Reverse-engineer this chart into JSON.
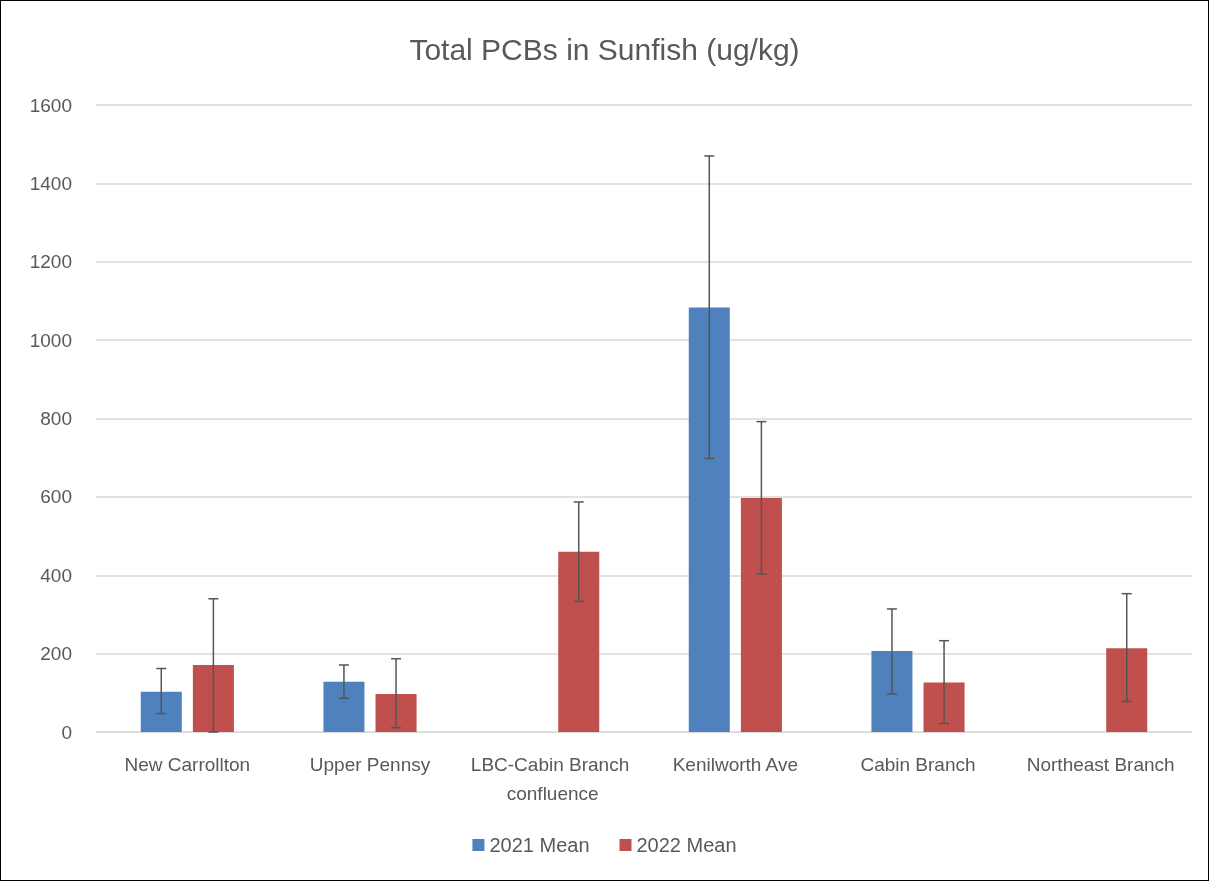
{
  "chart_data": {
    "type": "bar",
    "title": "Total PCBs in Sunfish (ug/kg)",
    "categories": [
      "New Carrollton",
      "Upper Pennsy",
      "LBC-Cabin Branch confluence",
      "Kenilworth Ave",
      "Cabin Branch",
      "Northeast Branch"
    ],
    "series": [
      {
        "name": "2021 Mean",
        "color": "#4f81bd",
        "values": [
          103,
          128,
          null,
          1083,
          207,
          null
        ],
        "errors": [
          [
            47,
            162
          ],
          [
            86,
            171
          ],
          null,
          [
            698,
            1470
          ],
          [
            97,
            314
          ],
          null
        ]
      },
      {
        "name": "2022 Mean",
        "color": "#c0504d",
        "values": [
          171,
          97,
          460,
          597,
          126,
          214
        ],
        "errors": [
          [
            0,
            340
          ],
          [
            11,
            187
          ],
          [
            333,
            587
          ],
          [
            403,
            792
          ],
          [
            22,
            233
          ],
          [
            78,
            353
          ]
        ]
      }
    ],
    "ylim": [
      0,
      1600
    ],
    "yticks": [
      0,
      200,
      400,
      600,
      800,
      1000,
      1200,
      1400,
      1600
    ],
    "grid": "y",
    "legend": "bottom"
  }
}
